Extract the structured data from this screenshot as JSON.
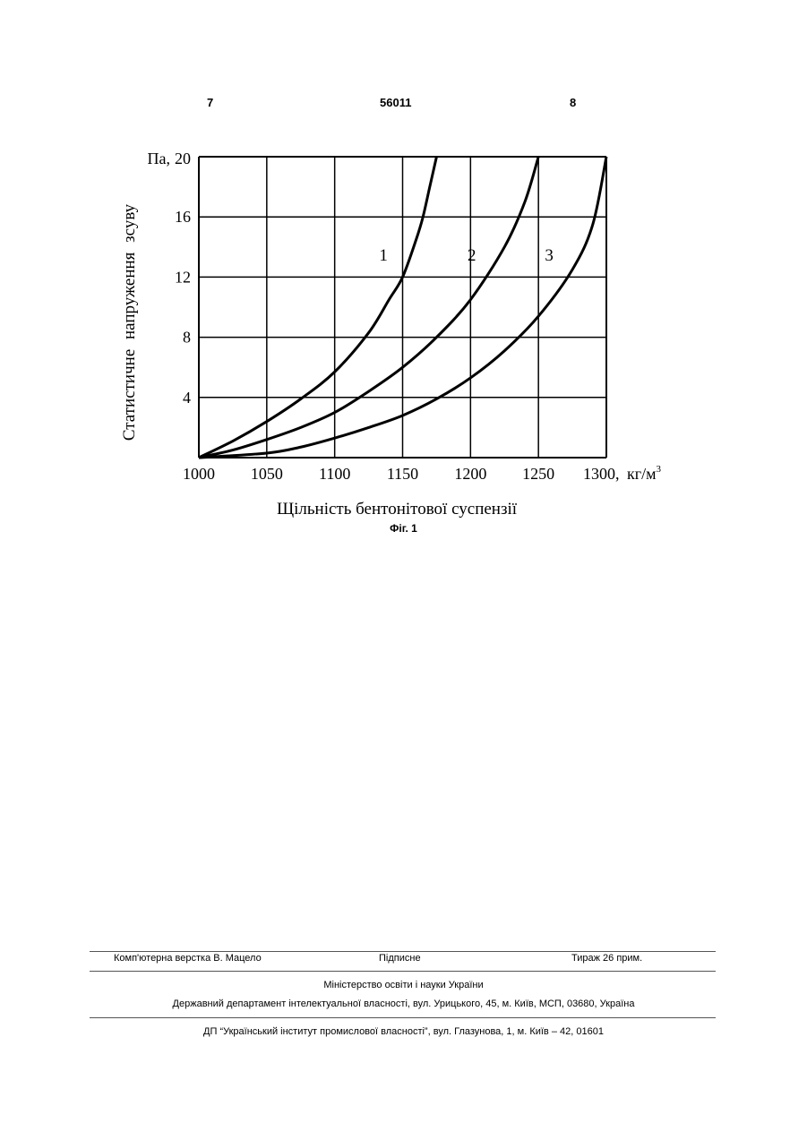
{
  "header": {
    "left_page": "7",
    "patent_number": "56011",
    "right_page": "8"
  },
  "figure": {
    "caption": "Фіг. 1"
  },
  "chart_data": {
    "type": "line",
    "ylabel": "Статистичне напруження зсуву",
    "xlabel": "Щільність бентонітової суспензії",
    "y_unit": "Па,",
    "x_unit": "кг/м",
    "x_unit_sup": "3",
    "x_ticks": [
      "1000",
      "1050",
      "1100",
      "1150",
      "1200",
      "1250",
      "1300,"
    ],
    "y_ticks": [
      "4",
      "8",
      "12",
      "16",
      "20"
    ],
    "xlim": [
      1000,
      1300
    ],
    "ylim": [
      0,
      20
    ],
    "grid": true,
    "series": [
      {
        "label": "1",
        "x": [
          1000,
          1025,
          1050,
          1075,
          1100,
          1125,
          1140,
          1150,
          1160,
          1165,
          1170,
          1175
        ],
        "y": [
          0,
          1.1,
          2.4,
          3.9,
          5.7,
          8.3,
          10.5,
          12.0,
          14.5,
          16.0,
          18.0,
          20.0
        ]
      },
      {
        "label": "2",
        "x": [
          1000,
          1025,
          1050,
          1075,
          1100,
          1125,
          1150,
          1175,
          1200,
          1225,
          1240,
          1250
        ],
        "y": [
          0,
          0.5,
          1.2,
          2.0,
          3.0,
          4.4,
          6.0,
          8.0,
          10.5,
          14.0,
          17.0,
          20.0
        ]
      },
      {
        "label": "3",
        "x": [
          1000,
          1050,
          1075,
          1100,
          1125,
          1150,
          1175,
          1200,
          1225,
          1250,
          1275,
          1290,
          1300
        ],
        "y": [
          0,
          0.3,
          0.7,
          1.3,
          2.0,
          2.8,
          3.9,
          5.3,
          7.1,
          9.4,
          12.5,
          15.5,
          20.0
        ]
      }
    ]
  },
  "footer": {
    "layout_by": "Комп'ютерна верстка В. Мацело",
    "signed": "Підписне",
    "print_run": "Тираж 26 прим.",
    "ministry": "Міністерство освіти і науки України",
    "department": "Державний департамент інтелектуальної власності, вул. Урицького, 45, м. Київ, МСП, 03680, Україна",
    "institute": "ДП “Український інститут промислової власності”, вул. Глазунова, 1, м. Київ – 42, 01601"
  }
}
